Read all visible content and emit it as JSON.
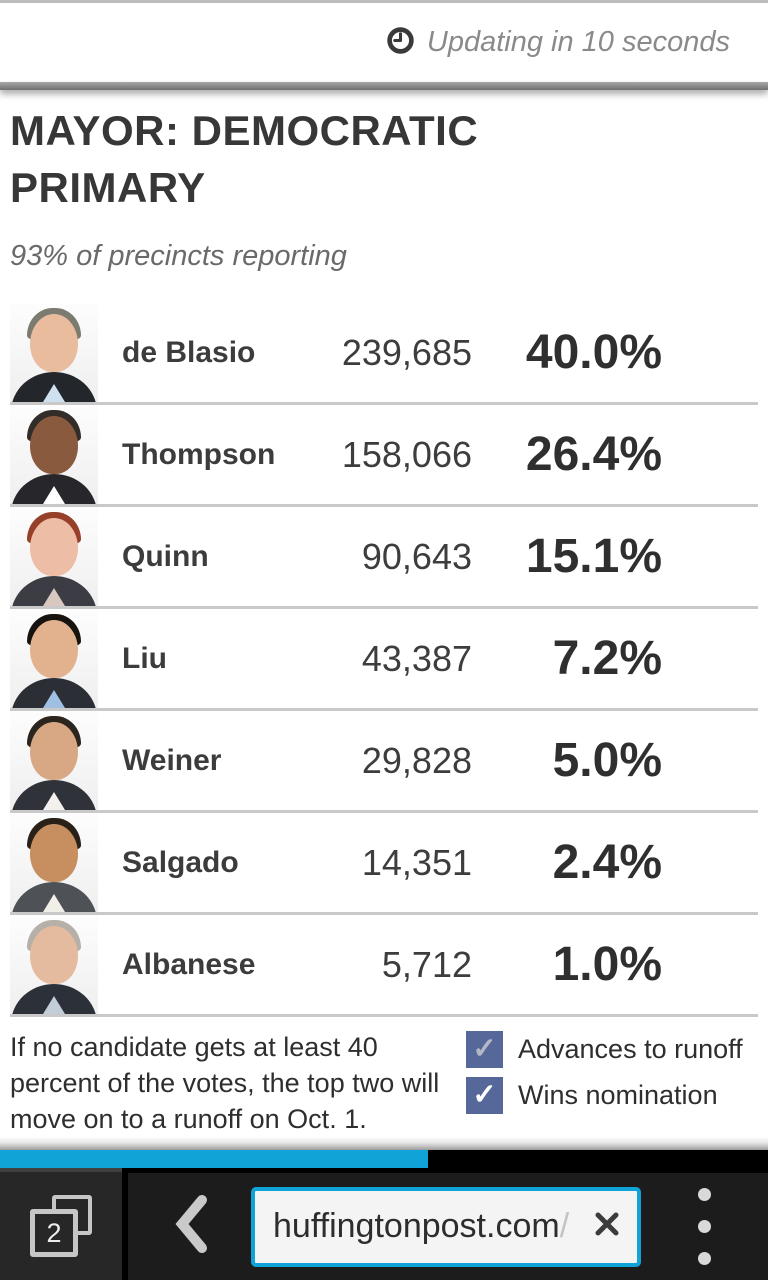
{
  "status_bar": {
    "updating_text": "Updating in 10 seconds"
  },
  "page": {
    "title": "MAYOR: DEMOCRATIC PRIMARY",
    "subtitle": "93% of precincts reporting",
    "candidates": [
      {
        "name": "de Blasio",
        "votes": "239,685",
        "percent": "40.0%",
        "avatar": {
          "skin": "#e9bc9e",
          "hair": "#7d7a6f",
          "suit": "#23262b",
          "shirt": "#cfe0ef"
        }
      },
      {
        "name": "Thompson",
        "votes": "158,066",
        "percent": "26.4%",
        "avatar": {
          "skin": "#8a5a3f",
          "hair": "#332d2a",
          "suit": "#26262b",
          "shirt": "#ffffff"
        }
      },
      {
        "name": "Quinn",
        "votes": "90,643",
        "percent": "15.1%",
        "avatar": {
          "skin": "#eebda6",
          "hair": "#96402a",
          "suit": "#3c3c44",
          "shirt": "#d8c8c0"
        }
      },
      {
        "name": "Liu",
        "votes": "43,387",
        "percent": "7.2%",
        "avatar": {
          "skin": "#e2b28e",
          "hair": "#17130f",
          "suit": "#2b2e35",
          "shirt": "#9fc0e2"
        }
      },
      {
        "name": "Weiner",
        "votes": "29,828",
        "percent": "5.0%",
        "avatar": {
          "skin": "#d8a884",
          "hair": "#2c241e",
          "suit": "#30323a",
          "shirt": "#f4f0ee"
        }
      },
      {
        "name": "Salgado",
        "votes": "14,351",
        "percent": "2.4%",
        "avatar": {
          "skin": "#c78f60",
          "hair": "#292118",
          "suit": "#4e5256",
          "shirt": "#f2efe9"
        }
      },
      {
        "name": "Albanese",
        "votes": "5,712",
        "percent": "1.0%",
        "avatar": {
          "skin": "#e5bb9f",
          "hair": "#b5b0a8",
          "suit": "#2c3038",
          "shirt": "#c2cdd8"
        }
      }
    ],
    "footnote_lines": [
      "If no candidate gets at least 40",
      "percent of the votes, the top two will",
      "move on to a runoff on Oct. 1."
    ],
    "legend": [
      {
        "label": "Advances to runoff",
        "check": "✓",
        "box_color": "#56689a",
        "check_color": "#b3b8c4"
      },
      {
        "label": "Wins nomination",
        "check": "✓",
        "box_color": "#56689a",
        "check_color": "#ffffff"
      }
    ]
  },
  "progress": {
    "fraction": 0.557,
    "color": "#10a3d8",
    "track_color": "#000000"
  },
  "browser": {
    "tabs_count": "2",
    "url": "huffingtonpost.com",
    "url_suffix": "/",
    "icons": {
      "clock": "clock-icon",
      "back": "back-arrow-icon",
      "stop": "close-icon",
      "menu": "overflow-menu-icon",
      "tabs": "tabs-icon"
    }
  }
}
